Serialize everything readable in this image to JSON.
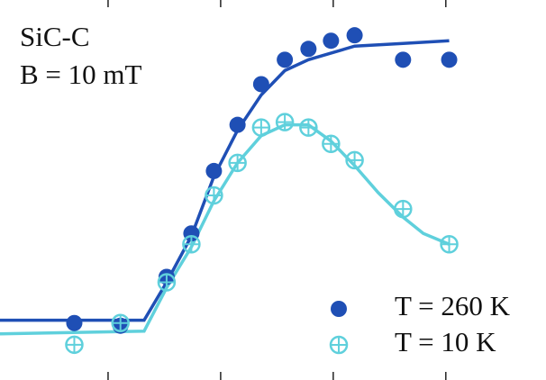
{
  "chart_data": {
    "type": "scatter",
    "annotations": [
      "SiC-C",
      "B = 10 mT"
    ],
    "xlim": [
      0.04,
      4.89
    ],
    "ylim": [
      -0.1,
      1.3
    ],
    "xticks": [
      1,
      2,
      3,
      4
    ],
    "series": [
      {
        "name": "T = 260 K",
        "color": "#1f4fb5",
        "marker": "filled",
        "x": [
          0.7,
          1.11,
          1.52,
          1.74,
          1.94,
          2.15,
          2.36,
          2.57,
          2.78,
          2.98,
          3.19,
          3.62,
          4.03
        ],
        "values": [
          0.11,
          0.1,
          0.28,
          0.44,
          0.67,
          0.84,
          0.99,
          1.08,
          1.12,
          1.15,
          1.17,
          1.08,
          1.08
        ],
        "fit_x": [
          0.04,
          1.32,
          1.52,
          1.74,
          1.94,
          2.15,
          2.36,
          2.57,
          2.78,
          3.19,
          3.62,
          4.03
        ],
        "fit_values": [
          0.12,
          0.12,
          0.26,
          0.43,
          0.65,
          0.82,
          0.95,
          1.04,
          1.08,
          1.13,
          1.14,
          1.15
        ]
      },
      {
        "name": "T = 10 K",
        "color": "#5fd0dc",
        "marker": "open-cross",
        "x": [
          0.7,
          1.11,
          1.52,
          1.74,
          1.94,
          2.15,
          2.36,
          2.57,
          2.78,
          2.98,
          3.19,
          3.62,
          4.03
        ],
        "values": [
          0.03,
          0.11,
          0.26,
          0.4,
          0.58,
          0.7,
          0.83,
          0.85,
          0.83,
          0.77,
          0.71,
          0.53,
          0.4
        ],
        "fit_x": [
          0.04,
          1.32,
          1.52,
          1.74,
          1.94,
          2.15,
          2.36,
          2.57,
          2.78,
          2.98,
          3.19,
          3.4,
          3.62,
          3.8,
          4.03
        ],
        "fit_values": [
          0.07,
          0.08,
          0.24,
          0.39,
          0.56,
          0.7,
          0.8,
          0.84,
          0.84,
          0.78,
          0.69,
          0.59,
          0.5,
          0.44,
          0.4
        ]
      }
    ]
  }
}
